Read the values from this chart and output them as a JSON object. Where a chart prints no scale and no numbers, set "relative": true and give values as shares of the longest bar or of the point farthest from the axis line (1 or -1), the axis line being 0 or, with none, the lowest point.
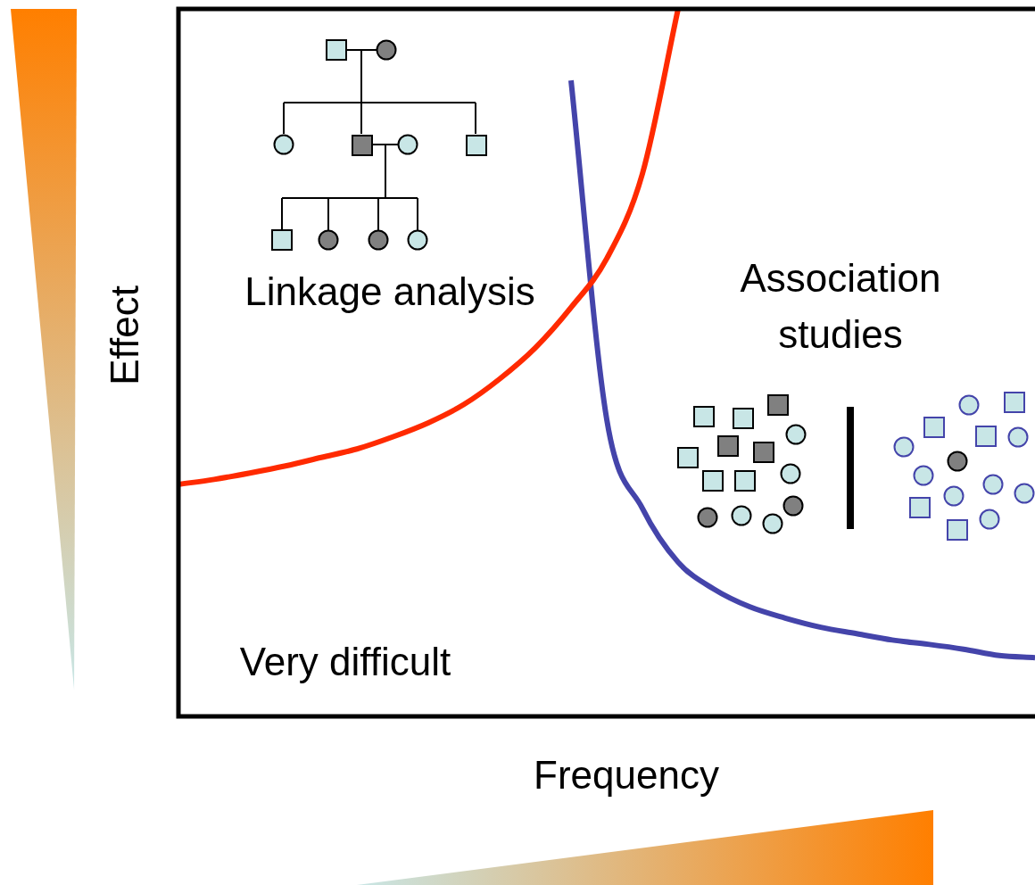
{
  "chart_data": {
    "type": "line",
    "relative": true,
    "xlabel": "Frequency",
    "ylabel": "Effect",
    "legend": false,
    "categories": [
      null,
      null,
      null,
      null,
      null,
      null,
      null,
      null,
      null,
      null,
      null,
      null,
      null,
      null,
      null,
      null,
      null,
      null,
      null,
      null,
      null,
      null,
      null,
      null,
      null
    ],
    "series": [
      {
        "color": "#ff2a00",
        "values": [
          0.328,
          0.335,
          0.344,
          0.354,
          0.366,
          0.378,
          0.395,
          0.415,
          0.441,
          0.477,
          0.521,
          0.578,
          0.647,
          0.767,
          1,
          null,
          null,
          null,
          null,
          null,
          null,
          null,
          null,
          null,
          null
        ]
      },
      {
        "color": "#4444aa",
        "values": [
          null,
          null,
          null,
          null,
          null,
          null,
          null,
          null,
          null,
          null,
          null,
          0.899,
          0.42,
          0.294,
          0.218,
          0.18,
          0.155,
          0.139,
          0.126,
          0.117,
          0.108,
          0.102,
          0.095,
          0.086,
          0.083
        ]
      }
    ],
    "annotations": [
      "Linkage analysis",
      "Association studies",
      "Very difficult"
    ]
  }
}
